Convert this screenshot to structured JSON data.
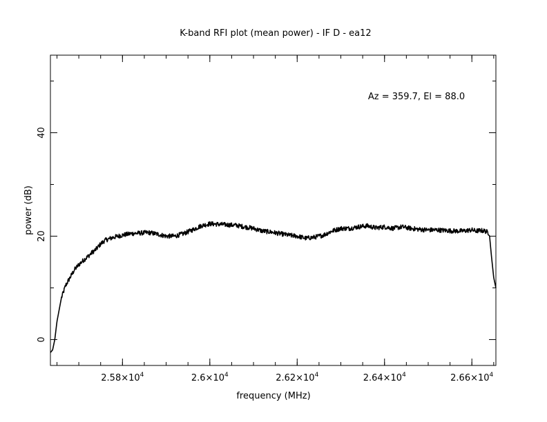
{
  "chart_data": {
    "type": "line",
    "title": "K-band RFI plot (mean power) - IF D - ea12",
    "xlabel": "frequency (MHz)",
    "ylabel": "power (dB)",
    "annotation": "Az = 359.7, El = 88.0",
    "xlim": [
      25635,
      26655
    ],
    "ylim": [
      -5,
      55
    ],
    "x_ticks": [
      {
        "value": 25800,
        "label": "2.58×10",
        "exp": "4"
      },
      {
        "value": 26000,
        "label": "2.6×10",
        "exp": "4"
      },
      {
        "value": 26200,
        "label": "2.62×10",
        "exp": "4"
      },
      {
        "value": 26400,
        "label": "2.64×10",
        "exp": "4"
      },
      {
        "value": 26600,
        "label": "2.66×10",
        "exp": "4"
      }
    ],
    "y_ticks": [
      {
        "value": 0,
        "label": "0"
      },
      {
        "value": 20,
        "label": "20"
      },
      {
        "value": 40,
        "label": "40"
      }
    ],
    "series": [
      {
        "color": "#000000",
        "x": [
          25635,
          25640,
          25645,
          25650,
          25660,
          25670,
          25680,
          25690,
          25700,
          25710,
          25720,
          25730,
          25740,
          25750,
          25760,
          25770,
          25780,
          25790,
          25800,
          25820,
          25840,
          25860,
          25880,
          25900,
          25920,
          25940,
          25960,
          25980,
          26000,
          26020,
          26040,
          26060,
          26080,
          26100,
          26120,
          26140,
          26160,
          26180,
          26200,
          26220,
          26240,
          26260,
          26280,
          26300,
          26320,
          26340,
          26360,
          26380,
          26400,
          26420,
          26440,
          26460,
          26480,
          26500,
          26520,
          26540,
          26560,
          26580,
          26600,
          26610,
          26620,
          26630,
          26635,
          26640,
          26645,
          26650,
          26655
        ],
        "y": [
          -2.5,
          -2.0,
          0.0,
          3.5,
          8.0,
          10.5,
          12.0,
          13.5,
          14.5,
          15.3,
          16.0,
          16.8,
          17.5,
          18.5,
          19.2,
          19.5,
          19.8,
          20.0,
          20.2,
          20.5,
          20.6,
          20.7,
          20.4,
          20.0,
          20.0,
          20.5,
          21.2,
          22.0,
          22.4,
          22.3,
          22.2,
          22.1,
          21.8,
          21.5,
          21.0,
          20.8,
          20.5,
          20.2,
          20.0,
          19.6,
          19.8,
          20.2,
          21.0,
          21.5,
          21.5,
          21.8,
          22.0,
          21.6,
          21.8,
          21.5,
          21.8,
          21.5,
          21.3,
          21.2,
          21.2,
          21.1,
          21.0,
          21.0,
          21.2,
          21.0,
          21.1,
          21.0,
          20.8,
          20.5,
          16.0,
          12.0,
          10.0
        ]
      }
    ]
  }
}
